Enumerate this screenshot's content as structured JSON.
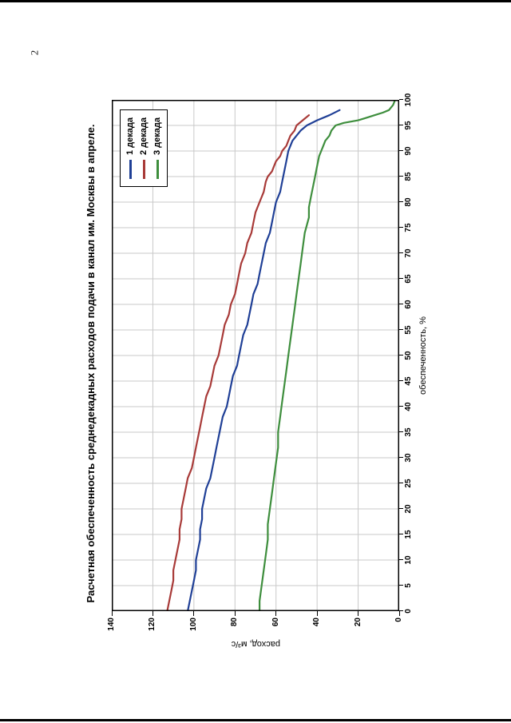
{
  "page": {
    "number": "2"
  },
  "chart_data": {
    "type": "line",
    "title": "Расчетная обеспеченность среднедекадных расходов подачи в канал им. Москвы в апреле.",
    "xlabel": "обеспеченность, %",
    "ylabel": "расход, м³/с",
    "xlim": [
      0,
      100
    ],
    "ylim": [
      0,
      140
    ],
    "xticks": [
      0,
      5,
      10,
      15,
      20,
      25,
      30,
      35,
      40,
      45,
      50,
      55,
      60,
      65,
      70,
      75,
      80,
      85,
      90,
      95,
      100
    ],
    "yticks": [
      0,
      20,
      40,
      60,
      80,
      100,
      120,
      140
    ],
    "grid": true,
    "grid_color": "#c9c9c9",
    "legend_position": "top-right-inside",
    "rotation_degrees": -90,
    "series": [
      {
        "name": "1 декада",
        "color": "#1f3f96",
        "points": [
          [
            0,
            103
          ],
          [
            2,
            102
          ],
          [
            4,
            101
          ],
          [
            6,
            100
          ],
          [
            8,
            99
          ],
          [
            10,
            99
          ],
          [
            12,
            98
          ],
          [
            14,
            97
          ],
          [
            16,
            97
          ],
          [
            18,
            96
          ],
          [
            20,
            96
          ],
          [
            22,
            95
          ],
          [
            24,
            94
          ],
          [
            26,
            92
          ],
          [
            28,
            91
          ],
          [
            30,
            90
          ],
          [
            32,
            89
          ],
          [
            34,
            88
          ],
          [
            36,
            87
          ],
          [
            38,
            86
          ],
          [
            40,
            84
          ],
          [
            42,
            83
          ],
          [
            44,
            82
          ],
          [
            46,
            81
          ],
          [
            48,
            79
          ],
          [
            50,
            78
          ],
          [
            52,
            77
          ],
          [
            54,
            76
          ],
          [
            56,
            74
          ],
          [
            58,
            73
          ],
          [
            60,
            72
          ],
          [
            62,
            71
          ],
          [
            64,
            69
          ],
          [
            66,
            68
          ],
          [
            68,
            67
          ],
          [
            70,
            66
          ],
          [
            72,
            65
          ],
          [
            74,
            63
          ],
          [
            76,
            62
          ],
          [
            78,
            61
          ],
          [
            80,
            60
          ],
          [
            82,
            58
          ],
          [
            84,
            57
          ],
          [
            86,
            56
          ],
          [
            88,
            55
          ],
          [
            90,
            54
          ],
          [
            91,
            53
          ],
          [
            92,
            52
          ],
          [
            93,
            50
          ],
          [
            94,
            48
          ],
          [
            95,
            45
          ],
          [
            96,
            40
          ],
          [
            97,
            34
          ],
          [
            98,
            29
          ]
        ]
      },
      {
        "name": "2 декада",
        "color": "#a83a38",
        "points": [
          [
            0,
            113
          ],
          [
            2,
            112
          ],
          [
            4,
            111
          ],
          [
            6,
            110
          ],
          [
            8,
            110
          ],
          [
            10,
            109
          ],
          [
            12,
            108
          ],
          [
            14,
            107
          ],
          [
            16,
            107
          ],
          [
            18,
            106
          ],
          [
            20,
            106
          ],
          [
            22,
            105
          ],
          [
            24,
            104
          ],
          [
            26,
            103
          ],
          [
            28,
            101
          ],
          [
            30,
            100
          ],
          [
            32,
            99
          ],
          [
            34,
            98
          ],
          [
            36,
            97
          ],
          [
            38,
            96
          ],
          [
            40,
            95
          ],
          [
            42,
            94
          ],
          [
            44,
            92
          ],
          [
            46,
            91
          ],
          [
            48,
            90
          ],
          [
            50,
            88
          ],
          [
            52,
            87
          ],
          [
            54,
            86
          ],
          [
            56,
            85
          ],
          [
            58,
            83
          ],
          [
            60,
            82
          ],
          [
            62,
            80
          ],
          [
            64,
            79
          ],
          [
            66,
            78
          ],
          [
            68,
            77
          ],
          [
            70,
            75
          ],
          [
            72,
            74
          ],
          [
            74,
            72
          ],
          [
            76,
            71
          ],
          [
            78,
            70
          ],
          [
            80,
            68
          ],
          [
            82,
            66
          ],
          [
            84,
            65
          ],
          [
            85,
            64
          ],
          [
            86,
            62
          ],
          [
            87,
            61
          ],
          [
            88,
            60
          ],
          [
            89,
            58
          ],
          [
            90,
            57
          ],
          [
            91,
            55
          ],
          [
            92,
            54
          ],
          [
            93,
            53
          ],
          [
            94,
            51
          ],
          [
            95,
            50
          ],
          [
            96,
            47
          ],
          [
            97,
            44
          ]
        ]
      },
      {
        "name": "3 декада",
        "color": "#3e8e3d",
        "points": [
          [
            0,
            68
          ],
          [
            2,
            68
          ],
          [
            5,
            67
          ],
          [
            8,
            66
          ],
          [
            11,
            65
          ],
          [
            14,
            64
          ],
          [
            17,
            64
          ],
          [
            20,
            63
          ],
          [
            23,
            62
          ],
          [
            26,
            61
          ],
          [
            29,
            60
          ],
          [
            32,
            59
          ],
          [
            35,
            59
          ],
          [
            38,
            58
          ],
          [
            41,
            57
          ],
          [
            44,
            56
          ],
          [
            47,
            55
          ],
          [
            50,
            54
          ],
          [
            53,
            53
          ],
          [
            56,
            52
          ],
          [
            59,
            51
          ],
          [
            62,
            50
          ],
          [
            65,
            49
          ],
          [
            68,
            48
          ],
          [
            71,
            47
          ],
          [
            74,
            46
          ],
          [
            77,
            44
          ],
          [
            79,
            44
          ],
          [
            81,
            43
          ],
          [
            83,
            42
          ],
          [
            85,
            41
          ],
          [
            87,
            40
          ],
          [
            89,
            39
          ],
          [
            90,
            38
          ],
          [
            91,
            37
          ],
          [
            92,
            36
          ],
          [
            93,
            34
          ],
          [
            94,
            33
          ],
          [
            95,
            31
          ],
          [
            95.5,
            27
          ],
          [
            96,
            20
          ],
          [
            96.5,
            16
          ],
          [
            97,
            12
          ],
          [
            97.5,
            8
          ],
          [
            98,
            5
          ],
          [
            99,
            3
          ],
          [
            100,
            2
          ]
        ]
      }
    ]
  }
}
